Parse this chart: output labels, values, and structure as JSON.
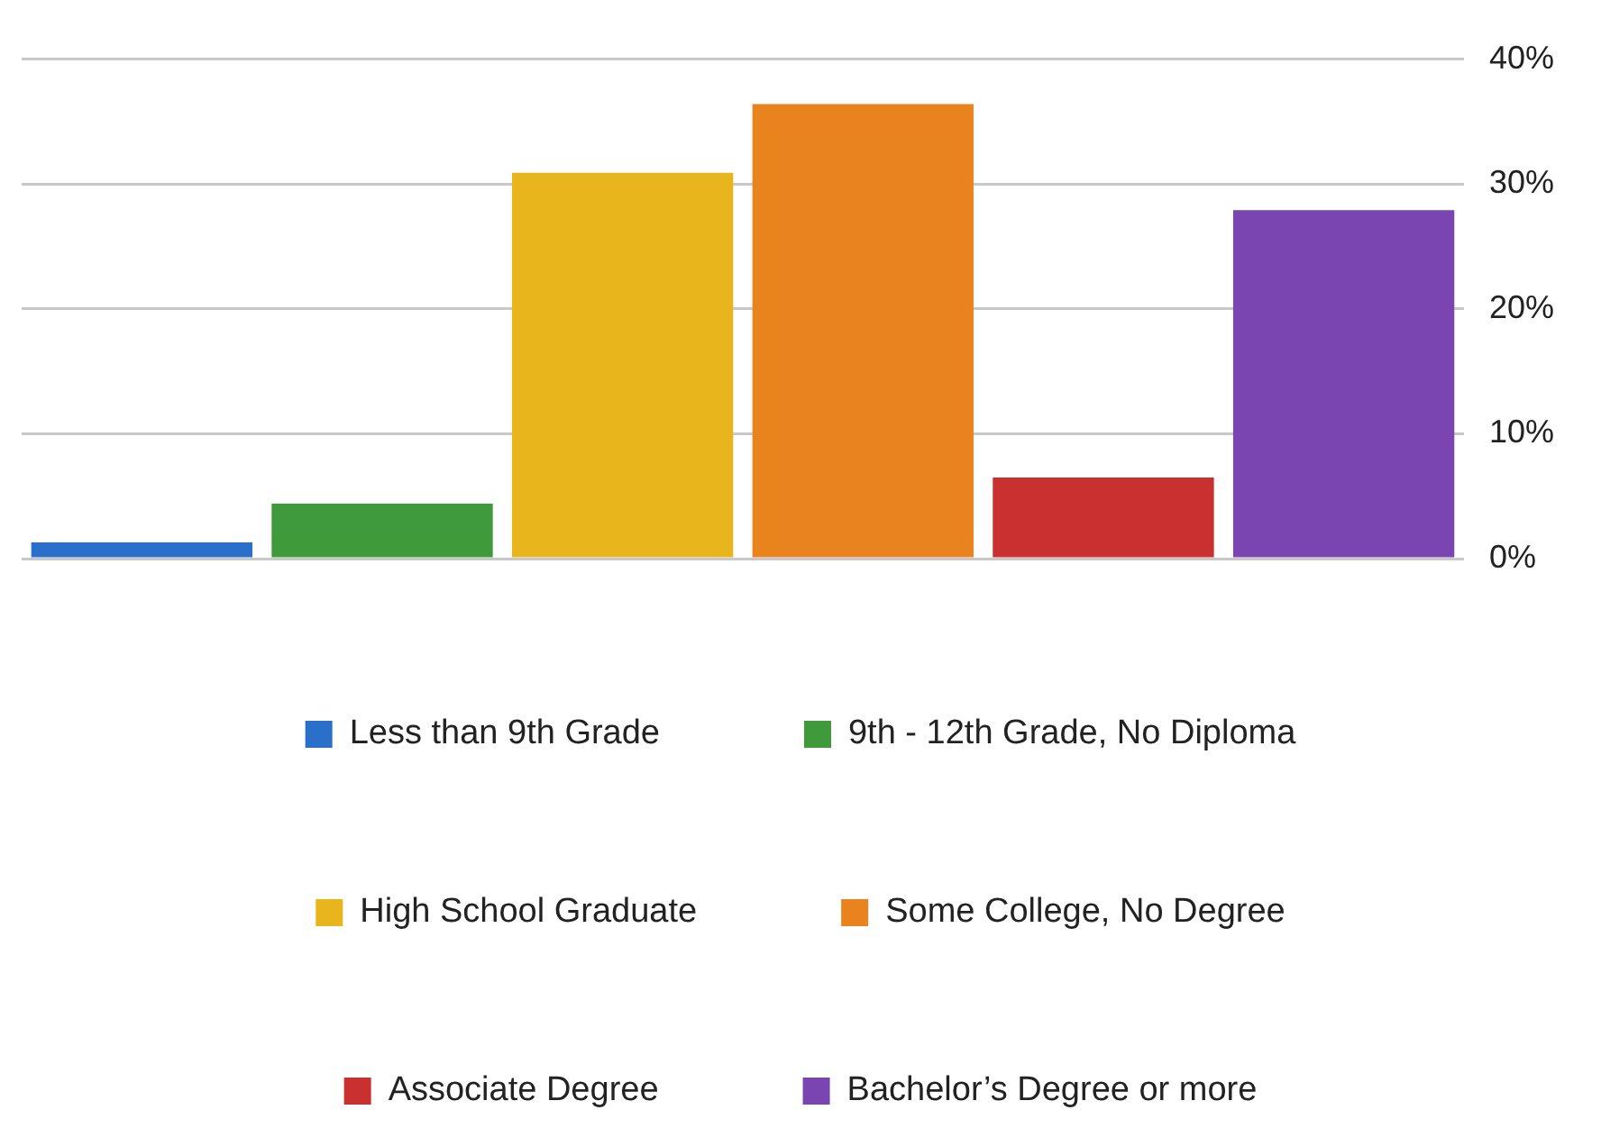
{
  "chart_data": {
    "type": "bar",
    "categories": [
      null,
      null,
      null,
      null,
      null,
      null
    ],
    "series": [
      {
        "name": "Less than 9th Grade",
        "color": "#2a6fc9",
        "values": [
          1.3,
          null,
          null,
          null,
          null,
          null
        ]
      },
      {
        "name": "9th - 12th Grade, No Diploma",
        "color": "#3e9a3a",
        "values": [
          null,
          4.4,
          null,
          null,
          null,
          null
        ]
      },
      {
        "name": "High School Graduate",
        "color": "#e8b51c",
        "values": [
          null,
          null,
          30.9,
          null,
          null,
          null
        ]
      },
      {
        "name": "Some College, No Degree",
        "color": "#e8831e",
        "values": [
          null,
          null,
          null,
          36.4,
          null,
          null
        ]
      },
      {
        "name": "Associate Degree",
        "color": "#c93030",
        "values": [
          null,
          null,
          null,
          null,
          6.5,
          null
        ]
      },
      {
        "name": "Bachelor’s Degree or more",
        "color": "#7a45b0",
        "values": [
          null,
          null,
          null,
          null,
          null,
          27.9
        ]
      }
    ],
    "ylim": [
      0,
      40
    ],
    "yticks": [
      {
        "value": 0,
        "label": "0%"
      },
      {
        "value": 10,
        "label": "10%"
      },
      {
        "value": 20,
        "label": "20%"
      },
      {
        "value": 30,
        "label": "30%"
      },
      {
        "value": 40,
        "label": "40%"
      }
    ],
    "grid": "y",
    "legend": "bottom",
    "tick_labels": "y"
  }
}
